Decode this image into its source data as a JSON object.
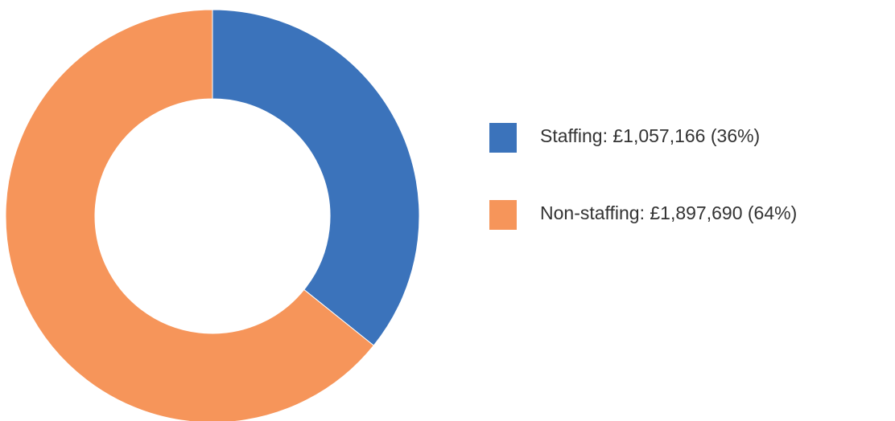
{
  "chart_data": {
    "type": "donut",
    "categories": [
      "Staffing: £1,057,166 (36%)",
      "Non-staffing: £1,897,690 (64%)"
    ],
    "values": [
      1057166,
      1897690
    ],
    "colors": [
      "#3b73bb",
      "#f6955a"
    ],
    "legend": "right"
  }
}
